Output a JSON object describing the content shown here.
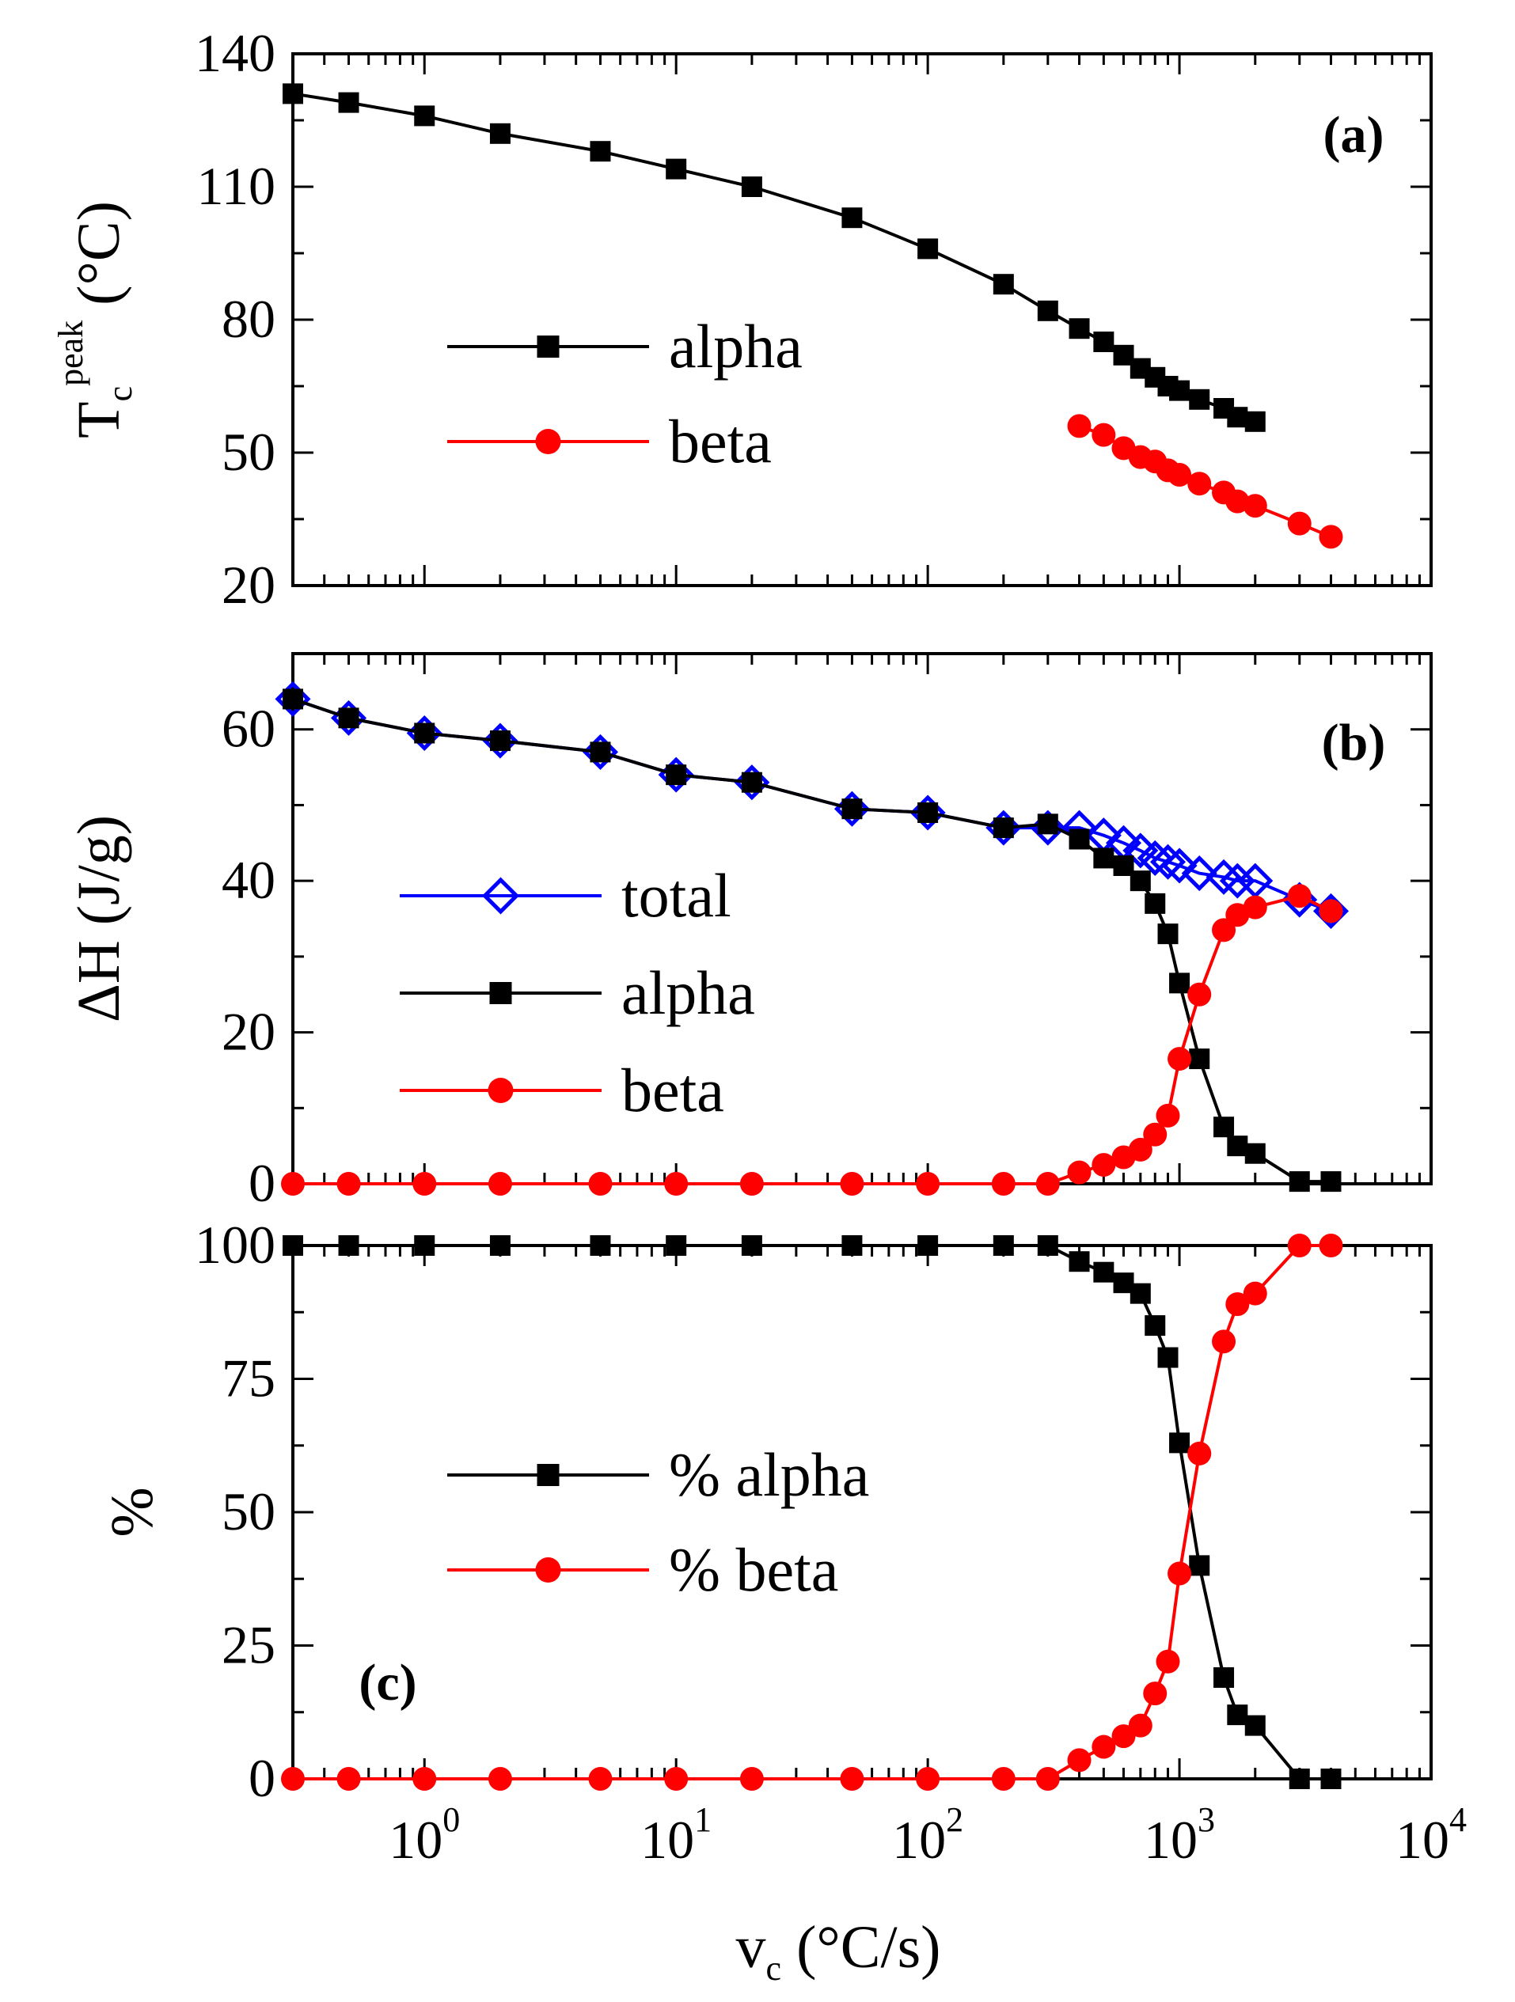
{
  "chart_data": [
    {
      "panel": "a",
      "type": "line",
      "panel_label": "(a)",
      "xscale": "log",
      "xlim": [
        0.3,
        10000
      ],
      "ylim": [
        20,
        140
      ],
      "yticks": [
        "20",
        "50",
        "80",
        "110",
        "140"
      ],
      "ylabel": {
        "main": "T",
        "sub": "c",
        "sup": "peak",
        "unit": " (°C)"
      },
      "legend_position": "center-left",
      "series": [
        {
          "name": "alpha",
          "color": "#000000",
          "marker": "square",
          "x": [
            0.3,
            0.5,
            1,
            2,
            5,
            10,
            20,
            50,
            100,
            200,
            300,
            400,
            500,
            600,
            700,
            800,
            900,
            1000,
            1200,
            1500,
            1700,
            2000
          ],
          "y": [
            131,
            129,
            126,
            122,
            118,
            114,
            110,
            103,
            96,
            88,
            82,
            78,
            75,
            72,
            69,
            67,
            65,
            64,
            62,
            60,
            58,
            57
          ]
        },
        {
          "name": "beta",
          "color": "#ff0000",
          "marker": "circle",
          "x": [
            400,
            500,
            600,
            700,
            800,
            900,
            1000,
            1200,
            1500,
            1700,
            2000,
            3000,
            4000
          ],
          "y": [
            56,
            54,
            51,
            49,
            48,
            46,
            45,
            43,
            41,
            39,
            38,
            34,
            31
          ]
        }
      ]
    },
    {
      "panel": "b",
      "type": "line",
      "panel_label": "(b)",
      "xscale": "log",
      "xlim": [
        0.3,
        10000
      ],
      "ylim": [
        0,
        70
      ],
      "yticks": [
        "0",
        "20",
        "40",
        "60"
      ],
      "ylabel": {
        "main": "ΔH",
        "unit": "  (J/g)"
      },
      "legend_position": "center-left",
      "series": [
        {
          "name": "total",
          "color": "#0000ff",
          "marker": "open-diamond",
          "x": [
            0.3,
            0.5,
            1,
            2,
            5,
            10,
            20,
            50,
            100,
            200,
            300,
            400,
            500,
            600,
            700,
            800,
            900,
            1000,
            1200,
            1500,
            1700,
            2000,
            3000,
            4000
          ],
          "y": [
            64,
            61.5,
            59.5,
            58.5,
            57,
            54,
            53,
            49.5,
            49,
            47,
            47,
            47,
            46,
            45,
            44,
            43,
            42.5,
            42,
            41,
            40.5,
            40,
            40,
            37.5,
            36
          ]
        },
        {
          "name": "alpha",
          "color": "#000000",
          "marker": "square",
          "x": [
            0.3,
            0.5,
            1,
            2,
            5,
            10,
            20,
            50,
            100,
            200,
            300,
            400,
            500,
            600,
            700,
            800,
            900,
            1000,
            1200,
            1500,
            1700,
            2000,
            3000,
            4000
          ],
          "y": [
            64,
            61.5,
            59.5,
            58.5,
            57,
            54,
            53,
            49.5,
            49,
            47,
            47.5,
            45.5,
            43,
            42,
            40,
            37,
            33,
            26.5,
            16.5,
            7.5,
            5,
            4,
            0.3,
            0.3
          ]
        },
        {
          "name": "beta",
          "color": "#ff0000",
          "marker": "circle",
          "x": [
            0.3,
            0.5,
            1,
            2,
            5,
            10,
            20,
            50,
            100,
            200,
            300,
            400,
            500,
            600,
            700,
            800,
            900,
            1000,
            1200,
            1500,
            1700,
            2000,
            3000,
            4000
          ],
          "y": [
            0,
            0,
            0,
            0,
            0,
            0,
            0,
            0,
            0,
            0,
            0,
            1.5,
            2.5,
            3.5,
            4.5,
            6.5,
            9,
            16.5,
            25,
            33.5,
            35.5,
            36.5,
            38,
            36
          ]
        }
      ]
    },
    {
      "panel": "c",
      "type": "line",
      "panel_label": "(c)",
      "xscale": "log",
      "xlim": [
        0.3,
        10000
      ],
      "ylim": [
        0,
        100
      ],
      "yticks": [
        "0",
        "25",
        "50",
        "75",
        "100"
      ],
      "xticks": [
        {
          "value": 1,
          "base": "10",
          "exp": "0"
        },
        {
          "value": 10,
          "base": "10",
          "exp": "1"
        },
        {
          "value": 100,
          "base": "10",
          "exp": "2"
        },
        {
          "value": 1000,
          "base": "10",
          "exp": "3"
        },
        {
          "value": 10000,
          "base": "10",
          "exp": "4"
        }
      ],
      "xlabel": {
        "main": "v",
        "sub": "c",
        "unit": " (°C/s)"
      },
      "ylabel": {
        "main": "%"
      },
      "legend_position": "center-left",
      "series": [
        {
          "name": "% alpha",
          "color": "#000000",
          "marker": "square",
          "x": [
            0.3,
            0.5,
            1,
            2,
            5,
            10,
            20,
            50,
            100,
            200,
            300,
            400,
            500,
            600,
            700,
            800,
            900,
            1000,
            1200,
            1500,
            1700,
            2000,
            3000,
            4000
          ],
          "y": [
            100,
            100,
            100,
            100,
            100,
            100,
            100,
            100,
            100,
            100,
            100,
            97,
            95,
            93,
            91,
            85,
            79,
            63,
            40,
            19,
            12,
            10,
            0,
            0
          ]
        },
        {
          "name": "% beta",
          "color": "#ff0000",
          "marker": "circle",
          "x": [
            0.3,
            0.5,
            1,
            2,
            5,
            10,
            20,
            50,
            100,
            200,
            300,
            400,
            500,
            600,
            700,
            800,
            900,
            1000,
            1200,
            1500,
            1700,
            2000,
            3000,
            4000
          ],
          "y": [
            0,
            0,
            0,
            0,
            0,
            0,
            0,
            0,
            0,
            0,
            0,
            3.5,
            6,
            8,
            10,
            16,
            22,
            38.5,
            61,
            82,
            89,
            91,
            100,
            100
          ]
        }
      ]
    }
  ]
}
